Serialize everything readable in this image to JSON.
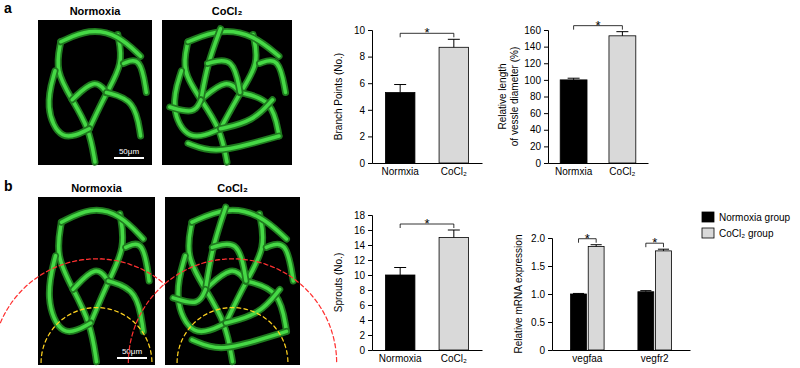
{
  "panel_labels": [
    "a",
    "b"
  ],
  "images": [
    {
      "title": "Normoxia",
      "scale_bar": "50μm"
    },
    {
      "title": "CoCl₂"
    },
    {
      "title": "Normoxia",
      "scale_bar": "50μm"
    },
    {
      "title": "CoCl₂"
    }
  ],
  "chart_data": [
    {
      "type": "bar",
      "y_label": "Branch Points (No.)",
      "categories": [
        "Normxia",
        "CoCl₂"
      ],
      "values": [
        5.3,
        8.7
      ],
      "errors": [
        0.6,
        0.6
      ],
      "colors": [
        "#000000",
        "#d9d9d9"
      ],
      "ylim": [
        0,
        10
      ],
      "yticks": [
        0,
        2,
        4,
        6,
        8,
        10
      ],
      "annotations": [
        {
          "text": "*"
        }
      ]
    },
    {
      "type": "bar",
      "y_label": [
        "Relative length",
        "of vessle diameter (%)"
      ],
      "categories": [
        "Normxia",
        "CoCl₂"
      ],
      "values": [
        100,
        153
      ],
      "errors": [
        2,
        5
      ],
      "colors": [
        "#000000",
        "#d9d9d9"
      ],
      "ylim": [
        0,
        160
      ],
      "yticks": [
        0,
        20,
        40,
        60,
        80,
        100,
        120,
        140,
        160
      ],
      "annotations": [
        {
          "text": "*"
        }
      ]
    },
    {
      "type": "bar",
      "y_label": "Sprouts (No.)",
      "categories": [
        "Normoxia",
        "CoCl₂"
      ],
      "values": [
        10,
        15
      ],
      "errors": [
        1,
        1
      ],
      "colors": [
        "#000000",
        "#d9d9d9"
      ],
      "ylim": [
        0,
        18
      ],
      "yticks": [
        0,
        2,
        4,
        6,
        8,
        10,
        12,
        14,
        16,
        18
      ],
      "annotations": [
        {
          "text": "*"
        }
      ]
    },
    {
      "type": "bar",
      "y_label": "Relative mRNA expression",
      "categories": [
        "vegfaa",
        "vegfr2"
      ],
      "series": [
        {
          "name": "Normoxia group",
          "color": "#000000",
          "values": [
            1.0,
            1.04
          ],
          "errors": [
            0.01,
            0.02
          ]
        },
        {
          "name": "CoCl₂ group",
          "color": "#d9d9d9",
          "values": [
            1.85,
            1.77
          ],
          "errors": [
            0.03,
            0.03
          ]
        }
      ],
      "ylim": [
        0,
        2
      ],
      "yticks": [
        0,
        0.5,
        {
          "value": 1,
          "label": "1.0"
        },
        1.5,
        {
          "value": 2,
          "label": "2.0"
        }
      ],
      "legend": "top-right",
      "annotations": [
        {
          "text": "*"
        },
        {
          "text": "*"
        }
      ]
    }
  ]
}
